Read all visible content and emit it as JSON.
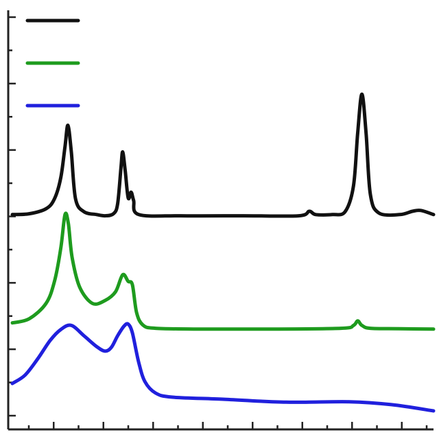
{
  "chart_data": {
    "type": "line",
    "title": "",
    "xlabel": "",
    "ylabel": "",
    "xlim": [
      0,
      100
    ],
    "ylim": [
      0,
      100
    ],
    "grid": false,
    "legend_position": "top-left",
    "x_tick_count": 17,
    "y_tick_count": 13,
    "series": [
      {
        "color": "#111111",
        "points": [
          [
            0,
            51.6
          ],
          [
            4,
            51.8
          ],
          [
            8,
            53.0
          ],
          [
            10,
            55.4
          ],
          [
            11.5,
            60.5
          ],
          [
            12.5,
            68.0
          ],
          [
            13.2,
            73.1
          ],
          [
            14.0,
            66.7
          ],
          [
            15.0,
            55.4
          ],
          [
            17,
            52.3
          ],
          [
            20,
            51.6
          ],
          [
            22,
            51.3
          ],
          [
            24,
            51.8
          ],
          [
            25,
            54.2
          ],
          [
            25.8,
            63.0
          ],
          [
            26.2,
            66.7
          ],
          [
            26.8,
            62.1
          ],
          [
            27.5,
            55.6
          ],
          [
            28.2,
            57.0
          ],
          [
            28.8,
            55.0
          ],
          [
            30,
            51.6
          ],
          [
            40,
            51.3
          ],
          [
            55,
            51.3
          ],
          [
            68,
            51.3
          ],
          [
            70.5,
            52.4
          ],
          [
            72,
            51.6
          ],
          [
            76,
            51.6
          ],
          [
            79,
            52.3
          ],
          [
            81,
            58.5
          ],
          [
            82,
            71.3
          ],
          [
            83,
            80.6
          ],
          [
            84,
            71.0
          ],
          [
            85,
            56.5
          ],
          [
            87,
            52.0
          ],
          [
            92,
            51.6
          ],
          [
            95,
            52.4
          ],
          [
            97,
            52.6
          ],
          [
            100,
            51.6
          ]
        ]
      },
      {
        "color": "#1e9b1e",
        "points": [
          [
            0,
            25.5
          ],
          [
            4,
            26.5
          ],
          [
            8,
            30.2
          ],
          [
            10,
            35.5
          ],
          [
            11.5,
            43.5
          ],
          [
            12.5,
            51.6
          ],
          [
            13.3,
            49.4
          ],
          [
            14.2,
            41.2
          ],
          [
            16,
            34.1
          ],
          [
            19,
            30.2
          ],
          [
            22,
            30.9
          ],
          [
            24.5,
            33.0
          ],
          [
            26.2,
            37.1
          ],
          [
            27.5,
            35.5
          ],
          [
            28.5,
            34.7
          ],
          [
            29.5,
            28.0
          ],
          [
            31,
            25.0
          ],
          [
            34,
            24.2
          ],
          [
            45,
            24.0
          ],
          [
            60,
            24.0
          ],
          [
            78,
            24.2
          ],
          [
            81,
            24.9
          ],
          [
            82,
            26.0
          ],
          [
            83,
            24.9
          ],
          [
            85,
            24.2
          ],
          [
            92,
            24.1
          ],
          [
            100,
            24.0
          ]
        ]
      },
      {
        "color": "#2020dd",
        "points": [
          [
            0,
            10.9
          ],
          [
            3,
            12.9
          ],
          [
            6,
            16.8
          ],
          [
            9,
            21.3
          ],
          [
            11.5,
            23.9
          ],
          [
            14,
            24.9
          ],
          [
            17,
            22.4
          ],
          [
            20,
            19.8
          ],
          [
            22,
            18.7
          ],
          [
            23.5,
            19.6
          ],
          [
            25,
            22.4
          ],
          [
            26.5,
            24.7
          ],
          [
            27.5,
            25.2
          ],
          [
            28.5,
            23.1
          ],
          [
            30,
            16.0
          ],
          [
            31.5,
            11.3
          ],
          [
            34,
            8.6
          ],
          [
            38,
            7.6
          ],
          [
            50,
            7.1
          ],
          [
            65,
            6.4
          ],
          [
            80,
            6.5
          ],
          [
            90,
            5.8
          ],
          [
            100,
            4.3
          ]
        ]
      }
    ]
  }
}
